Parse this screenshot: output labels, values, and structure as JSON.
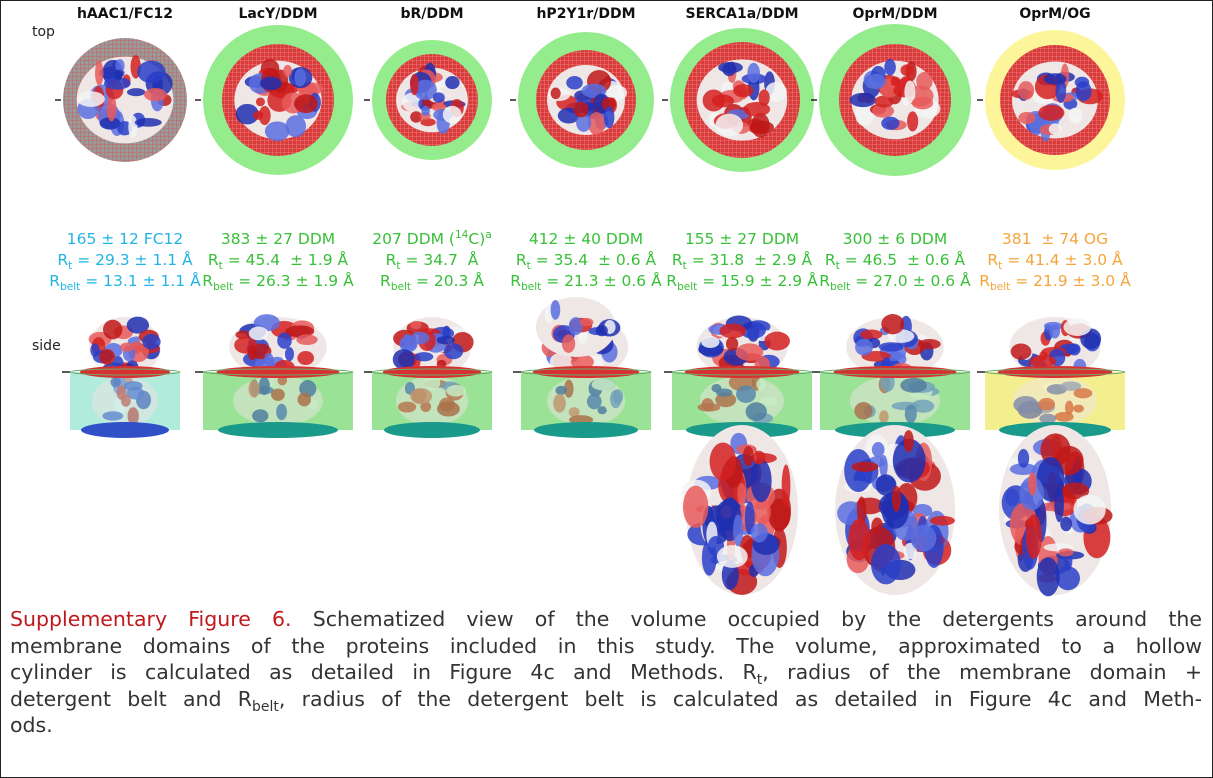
{
  "panel_labels": {
    "top": "top",
    "side": "side"
  },
  "columns": [
    {
      "title": "hAAC1/FC12",
      "color": "#22b4e6",
      "detergent": [
        {
          "text": "165 ± 12 FC12"
        }
      ],
      "rt": [
        {
          "text": "R"
        },
        {
          "sub": "t"
        },
        {
          "text": " = 29.3 ± 1.1 Å"
        }
      ],
      "rbelt": [
        {
          "text": "R"
        },
        {
          "sub": "belt"
        },
        {
          "text": " = 13.1 ± 1.1 Å"
        }
      ]
    },
    {
      "title": "LacY/DDM",
      "color": "#38c038",
      "detergent": [
        {
          "text": "383 ± 27 DDM"
        }
      ],
      "rt": [
        {
          "text": "R"
        },
        {
          "sub": "t"
        },
        {
          "text": " = 45.4  ± 1.9 Å"
        }
      ],
      "rbelt": [
        {
          "text": "R"
        },
        {
          "sub": "belt"
        },
        {
          "text": " = 26.3 ± 1.9 Å"
        }
      ]
    },
    {
      "title": "bR/DDM",
      "color": "#38c038",
      "detergent": [
        {
          "text": "207 DDM ("
        },
        {
          "sup": "14"
        },
        {
          "text": "C)"
        },
        {
          "sup": "a"
        }
      ],
      "rt": [
        {
          "text": "R"
        },
        {
          "sub": "t"
        },
        {
          "text": " = 34.7  Å"
        }
      ],
      "rbelt": [
        {
          "text": "R"
        },
        {
          "sub": "belt"
        },
        {
          "text": " = 20.3 Å"
        }
      ]
    },
    {
      "title": "hP2Y1r/DDM",
      "color": "#38c038",
      "detergent": [
        {
          "text": "412 ± 40 DDM"
        }
      ],
      "rt": [
        {
          "text": "R"
        },
        {
          "sub": "t"
        },
        {
          "text": " = 35.4  ± 0.6 Å"
        }
      ],
      "rbelt": [
        {
          "text": "R"
        },
        {
          "sub": "belt"
        },
        {
          "text": " = 21.3 ± 0.6 Å"
        }
      ]
    },
    {
      "title": "SERCA1a/DDM",
      "color": "#38c038",
      "detergent": [
        {
          "text": "155 ± 27 DDM"
        }
      ],
      "rt": [
        {
          "text": "R"
        },
        {
          "sub": "t"
        },
        {
          "text": " = 31.8  ± 2.9 Å"
        }
      ],
      "rbelt": [
        {
          "text": "R"
        },
        {
          "sub": "belt"
        },
        {
          "text": " = 15.9 ± 2.9 Å"
        }
      ]
    },
    {
      "title": "OprM/DDM",
      "color": "#38c038",
      "detergent": [
        {
          "text": "300 ± 6 DDM"
        }
      ],
      "rt": [
        {
          "text": "R"
        },
        {
          "sub": "t"
        },
        {
          "text": " = 46.5  ± 0.6 Å"
        }
      ],
      "rbelt": [
        {
          "text": "R"
        },
        {
          "sub": "belt"
        },
        {
          "text": " = 27.0 ± 0.6 Å"
        }
      ]
    },
    {
      "title": "OprM/OG",
      "color": "#f5a43a",
      "detergent": [
        {
          "text": "381  ± 74 OG"
        }
      ],
      "rt": [
        {
          "text": "R"
        },
        {
          "sub": "t"
        },
        {
          "text": " = 41.4 ± 3.0 Å"
        }
      ],
      "rbelt": [
        {
          "text": "R"
        },
        {
          "sub": "belt"
        },
        {
          "text": " = 21.9 ± 3.0 Å"
        }
      ]
    }
  ],
  "caption": {
    "label": "Supplementary Figure 6.",
    "lines": [
      [
        {
          "text": " Schematized view of the volume occupied by the detergents around the"
        }
      ],
      [
        {
          "text": "membrane domains of the proteins included in this study. The volume, approximated to a hollow"
        }
      ],
      [
        {
          "text": "cylinder is calculated as detailed in Figure 4c and Methods. R"
        },
        {
          "sub": "t"
        },
        {
          "text": ", radius of the membrane domain +"
        }
      ],
      [
        {
          "text": "detergent belt and R"
        },
        {
          "sub": "belt"
        },
        {
          "text": ", radius of the detergent belt is calculated as detailed in Figure 4c and Meth-"
        }
      ],
      [
        {
          "text": "ods."
        }
      ]
    ]
  }
}
